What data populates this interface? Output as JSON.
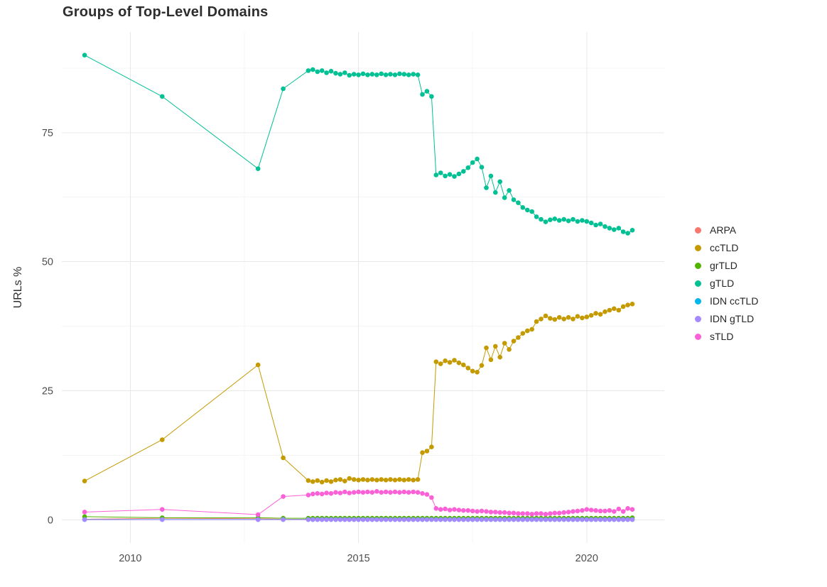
{
  "page": {
    "background": "#FFFFFF"
  },
  "chart_data": {
    "type": "line",
    "title": "Groups of Top-Level Domains",
    "xlabel": "",
    "ylabel": "URLs %",
    "grid": true,
    "legend_position": "right",
    "xlim": [
      2008.5,
      2021.7
    ],
    "ylim": [
      -4.5,
      94.5
    ],
    "x_ticks": [
      2010,
      2015,
      2020
    ],
    "y_ticks": [
      0,
      25,
      50,
      75
    ],
    "x_minor": [
      2012.5,
      2017.5
    ],
    "y_minor": [
      12.5,
      37.5,
      62.5,
      87.5
    ],
    "grid_major_color": "#E8E8E8",
    "grid_minor_color": "#F4F4F4",
    "tick_label_color": "#4D4D4D",
    "x": [
      2009.0,
      2010.7,
      2012.8,
      2013.35,
      2013.9,
      2014.0,
      2014.1,
      2014.2,
      2014.3,
      2014.4,
      2014.5,
      2014.6,
      2014.7,
      2014.8,
      2014.9,
      2015.0,
      2015.1,
      2015.2,
      2015.3,
      2015.4,
      2015.5,
      2015.6,
      2015.7,
      2015.8,
      2015.9,
      2016.0,
      2016.1,
      2016.2,
      2016.3,
      2016.4,
      2016.5,
      2016.6,
      2016.7,
      2016.8,
      2016.9,
      2017.0,
      2017.1,
      2017.2,
      2017.3,
      2017.4,
      2017.5,
      2017.6,
      2017.7,
      2017.8,
      2017.9,
      2018.0,
      2018.1,
      2018.2,
      2018.3,
      2018.4,
      2018.5,
      2018.6,
      2018.7,
      2018.8,
      2018.9,
      2019.0,
      2019.1,
      2019.2,
      2019.3,
      2019.4,
      2019.5,
      2019.6,
      2019.7,
      2019.8,
      2019.9,
      2020.0,
      2020.1,
      2020.2,
      2020.3,
      2020.4,
      2020.5,
      2020.6,
      2020.7,
      2020.8,
      2020.9,
      2021.0
    ],
    "series": [
      {
        "name": "ARPA",
        "color": "#F8766D",
        "values": [
          0.1,
          0.3,
          0.2,
          0.1,
          0.1,
          0.1,
          0.1,
          0.1,
          0.1,
          0.1,
          0.1,
          0.1,
          0.1,
          0.1,
          0.1,
          0.1,
          0.1,
          0.1,
          0.1,
          0.1,
          0.1,
          0.1,
          0.1,
          0.1,
          0.1,
          0.1,
          0.1,
          0.1,
          0.1,
          0.1,
          0.1,
          0.1,
          0.1,
          0.1,
          0.1,
          0.1,
          0.1,
          0.1,
          0.1,
          0.1,
          0.1,
          0.1,
          0.1,
          0.1,
          0.1,
          0.1,
          0.1,
          0.1,
          0.1,
          0.1,
          0.1,
          0.1,
          0.1,
          0.1,
          0.1,
          0.1,
          0.1,
          0.1,
          0.1,
          0.1,
          0.1,
          0.1,
          0.1,
          0.1,
          0.1,
          0.1,
          0.1,
          0.1,
          0.1,
          0.1,
          0.1,
          0.1,
          0.1,
          0.1,
          0.1,
          0.1
        ]
      },
      {
        "name": "ccTLD",
        "color": "#C49A00",
        "values": [
          7.5,
          15.5,
          30.0,
          12.0,
          7.6,
          7.4,
          7.6,
          7.3,
          7.6,
          7.4,
          7.7,
          7.8,
          7.5,
          8.0,
          7.8,
          7.7,
          7.8,
          7.7,
          7.8,
          7.7,
          7.8,
          7.7,
          7.8,
          7.7,
          7.8,
          7.7,
          7.8,
          7.7,
          7.8,
          13.0,
          13.3,
          14.1,
          30.6,
          30.2,
          30.8,
          30.5,
          30.9,
          30.4,
          30.0,
          29.4,
          28.8,
          28.6,
          29.9,
          33.3,
          31.0,
          33.6,
          31.5,
          34.2,
          33.0,
          34.6,
          35.3,
          36.1,
          36.6,
          36.9,
          38.4,
          38.9,
          39.5,
          39.0,
          38.8,
          39.2,
          38.9,
          39.2,
          38.9,
          39.4,
          39.1,
          39.3,
          39.6,
          40.0,
          39.8,
          40.3,
          40.6,
          40.9,
          40.6,
          41.3,
          41.6,
          41.8
        ]
      },
      {
        "name": "grTLD",
        "color": "#53B400",
        "values": [
          0.6,
          0.4,
          0.4,
          0.3,
          0.3,
          0.3,
          0.3,
          0.3,
          0.3,
          0.3,
          0.3,
          0.3,
          0.3,
          0.3,
          0.3,
          0.3,
          0.3,
          0.3,
          0.3,
          0.3,
          0.3,
          0.3,
          0.3,
          0.3,
          0.3,
          0.3,
          0.3,
          0.3,
          0.3,
          0.3,
          0.3,
          0.3,
          0.3,
          0.3,
          0.3,
          0.3,
          0.3,
          0.3,
          0.3,
          0.3,
          0.3,
          0.3,
          0.3,
          0.3,
          0.3,
          0.3,
          0.3,
          0.3,
          0.3,
          0.3,
          0.3,
          0.3,
          0.3,
          0.3,
          0.3,
          0.3,
          0.3,
          0.3,
          0.3,
          0.3,
          0.3,
          0.3,
          0.3,
          0.3,
          0.3,
          0.3,
          0.3,
          0.3,
          0.3,
          0.3,
          0.3,
          0.3,
          0.3,
          0.3,
          0.3,
          0.4
        ]
      },
      {
        "name": "gTLD",
        "color": "#00C094",
        "values": [
          90.0,
          82.0,
          68.0,
          83.5,
          87.0,
          87.2,
          86.8,
          87.0,
          86.6,
          86.9,
          86.5,
          86.3,
          86.6,
          86.1,
          86.3,
          86.2,
          86.4,
          86.2,
          86.3,
          86.2,
          86.4,
          86.2,
          86.3,
          86.2,
          86.4,
          86.3,
          86.2,
          86.3,
          86.2,
          82.4,
          83.0,
          82.0,
          66.8,
          67.2,
          66.6,
          66.9,
          66.5,
          67.0,
          67.5,
          68.2,
          69.2,
          69.9,
          68.3,
          64.3,
          66.6,
          63.4,
          65.5,
          62.4,
          63.8,
          62.0,
          61.4,
          60.5,
          60.0,
          59.7,
          58.7,
          58.2,
          57.7,
          58.1,
          58.3,
          58.0,
          58.2,
          57.9,
          58.2,
          57.8,
          58.0,
          57.8,
          57.5,
          57.1,
          57.3,
          56.8,
          56.5,
          56.2,
          56.5,
          55.8,
          55.5,
          56.1
        ]
      },
      {
        "name": "IDN ccTLD",
        "color": "#00B6EB",
        "values": [
          0.05,
          0.05,
          0.05,
          0.05,
          0.05,
          0.05,
          0.05,
          0.05,
          0.05,
          0.05,
          0.05,
          0.05,
          0.05,
          0.05,
          0.05,
          0.05,
          0.05,
          0.05,
          0.05,
          0.05,
          0.05,
          0.05,
          0.05,
          0.05,
          0.05,
          0.05,
          0.05,
          0.05,
          0.05,
          0.05,
          0.05,
          0.05,
          0.05,
          0.05,
          0.05,
          0.05,
          0.05,
          0.05,
          0.05,
          0.05,
          0.05,
          0.05,
          0.05,
          0.05,
          0.05,
          0.05,
          0.05,
          0.05,
          0.05,
          0.05,
          0.05,
          0.05,
          0.05,
          0.05,
          0.05,
          0.05,
          0.05,
          0.05,
          0.05,
          0.05,
          0.05,
          0.05,
          0.05,
          0.05,
          0.05,
          0.05,
          0.05,
          0.05,
          0.05,
          0.05,
          0.05,
          0.05,
          0.05,
          0.05,
          0.05,
          0.05
        ]
      },
      {
        "name": "IDN gTLD",
        "color": "#A58AFF",
        "values": [
          0.02,
          0.02,
          0.02,
          0.02,
          0.02,
          0.02,
          0.02,
          0.02,
          0.02,
          0.02,
          0.02,
          0.02,
          0.02,
          0.02,
          0.02,
          0.02,
          0.02,
          0.02,
          0.02,
          0.02,
          0.02,
          0.02,
          0.02,
          0.02,
          0.02,
          0.02,
          0.02,
          0.02,
          0.02,
          0.02,
          0.02,
          0.02,
          0.02,
          0.02,
          0.02,
          0.02,
          0.02,
          0.02,
          0.02,
          0.02,
          0.02,
          0.02,
          0.02,
          0.02,
          0.02,
          0.02,
          0.02,
          0.02,
          0.02,
          0.02,
          0.02,
          0.02,
          0.02,
          0.02,
          0.02,
          0.02,
          0.02,
          0.02,
          0.02,
          0.02,
          0.02,
          0.02,
          0.02,
          0.02,
          0.02,
          0.02,
          0.02,
          0.02,
          0.02,
          0.02,
          0.02,
          0.02,
          0.02,
          0.02,
          0.02,
          0.02
        ]
      },
      {
        "name": "sTLD",
        "color": "#FB61D7",
        "values": [
          1.5,
          2.0,
          1.0,
          4.5,
          4.8,
          5.0,
          5.1,
          5.0,
          5.2,
          5.1,
          5.3,
          5.2,
          5.4,
          5.2,
          5.3,
          5.4,
          5.3,
          5.4,
          5.3,
          5.5,
          5.3,
          5.4,
          5.3,
          5.4,
          5.3,
          5.4,
          5.3,
          5.4,
          5.3,
          5.1,
          4.9,
          4.3,
          2.2,
          2.0,
          2.1,
          1.9,
          2.0,
          1.9,
          1.8,
          1.8,
          1.7,
          1.6,
          1.7,
          1.6,
          1.5,
          1.5,
          1.4,
          1.4,
          1.3,
          1.3,
          1.2,
          1.2,
          1.2,
          1.1,
          1.2,
          1.2,
          1.1,
          1.2,
          1.3,
          1.3,
          1.4,
          1.5,
          1.6,
          1.7,
          1.8,
          2.0,
          1.9,
          1.8,
          1.7,
          1.7,
          1.8,
          1.6,
          2.1,
          1.6,
          2.2,
          2.0
        ]
      }
    ]
  }
}
